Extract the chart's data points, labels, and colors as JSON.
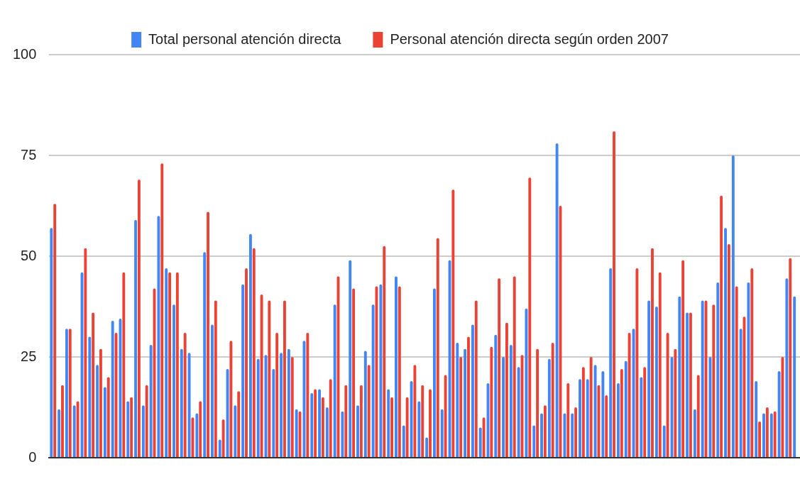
{
  "chart_data": {
    "type": "bar",
    "categories": [
      null,
      null,
      null,
      null,
      null,
      null,
      null,
      null,
      null,
      null,
      null,
      null,
      null,
      null,
      null,
      null,
      null,
      null,
      null,
      null,
      null,
      null,
      null,
      null,
      null,
      null,
      null,
      null,
      null,
      null,
      null,
      null,
      null,
      null,
      null,
      null,
      null,
      null,
      null,
      null,
      null,
      null,
      null,
      null,
      null,
      null,
      null,
      null,
      null,
      null,
      null,
      null,
      null,
      null,
      null,
      null,
      null,
      null,
      null,
      null,
      null,
      null,
      null,
      null,
      null,
      null,
      null,
      null,
      null,
      null,
      null,
      null,
      null,
      null,
      null,
      null,
      null,
      null,
      null,
      null,
      null,
      null,
      null,
      null,
      null,
      null,
      null,
      null,
      null,
      null,
      null,
      null,
      null,
      null,
      null,
      null,
      null,
      null
    ],
    "series": [
      {
        "name": "Total personal atención directa",
        "color": "#4285f4",
        "values": [
          57,
          12,
          32,
          13,
          46,
          30,
          23,
          17.5,
          34,
          34.5,
          14,
          59,
          13,
          28,
          60,
          47,
          38,
          27,
          26,
          11,
          51,
          33,
          4.5,
          22,
          13,
          43,
          55.5,
          24.5,
          25.5,
          22,
          26,
          27,
          12,
          29,
          16,
          17,
          12.5,
          38,
          11.5,
          49,
          13,
          26.5,
          38,
          43,
          17,
          45,
          8,
          19,
          14,
          5,
          42,
          12,
          49,
          28.5,
          27,
          33,
          7.5,
          18.5,
          30.5,
          25,
          28,
          22.5,
          37,
          8,
          11,
          24.5,
          78,
          11,
          11,
          19.5,
          19.5,
          23,
          21.5,
          47,
          18.5,
          24,
          32,
          20,
          39,
          37.5,
          8,
          25,
          40,
          36,
          12,
          39,
          25,
          43.5,
          57,
          75,
          32,
          43.5,
          19,
          11,
          11,
          21.5,
          44.5,
          40
        ]
      },
      {
        "name": "Personal atención directa según orden 2007",
        "color": "#ea4335",
        "values": [
          63,
          18,
          32,
          14,
          52,
          36,
          27,
          20,
          31,
          46,
          15,
          69,
          18,
          42,
          73,
          46,
          46,
          31,
          10,
          14,
          61,
          39,
          9.5,
          29,
          16.5,
          47,
          52,
          40.5,
          39,
          31,
          39,
          25,
          11.5,
          31,
          17,
          15,
          19.5,
          45,
          18,
          42,
          18,
          23,
          42.5,
          52.5,
          15,
          42.5,
          15,
          23,
          18,
          17,
          54.5,
          20.5,
          66.5,
          25,
          30,
          39,
          10,
          27.5,
          44.5,
          33.5,
          45,
          25.5,
          69.5,
          27,
          13,
          28.5,
          62.5,
          18.5,
          12.5,
          22.5,
          25,
          18,
          15.5,
          81,
          22,
          31,
          47,
          22.5,
          52,
          46,
          31,
          27,
          49,
          36,
          20.5,
          39,
          38,
          65,
          53,
          42.5,
          35,
          47,
          9,
          12.5,
          11.5,
          25,
          49.5,
          null
        ]
      }
    ],
    "ylim": [
      0,
      100
    ],
    "yticks": [
      0,
      25,
      50,
      75,
      100
    ],
    "grid": "y",
    "legend": "top"
  }
}
